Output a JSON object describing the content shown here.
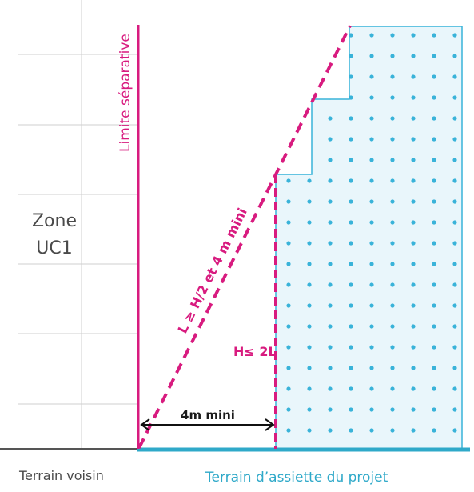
{
  "labels": {
    "zone_line1": "Zone",
    "zone_line2": "UC1",
    "limite": "Limite séparative",
    "slope_rule": "L ≥ H/2 et 4 m mini",
    "height_rule": "H≤ 2L",
    "distance": "4m mini",
    "terrain_voisin": "Terrain voisin",
    "terrain_projet": "Terrain d’assiette du projet"
  },
  "colors": {
    "magenta": "#d81b7f",
    "cyan": "#2fa9c9",
    "building_fill": "#e9f6fb",
    "building_dot": "#39b3d9",
    "grid": "#cfcfcf",
    "text": "#4a4a4a"
  }
}
